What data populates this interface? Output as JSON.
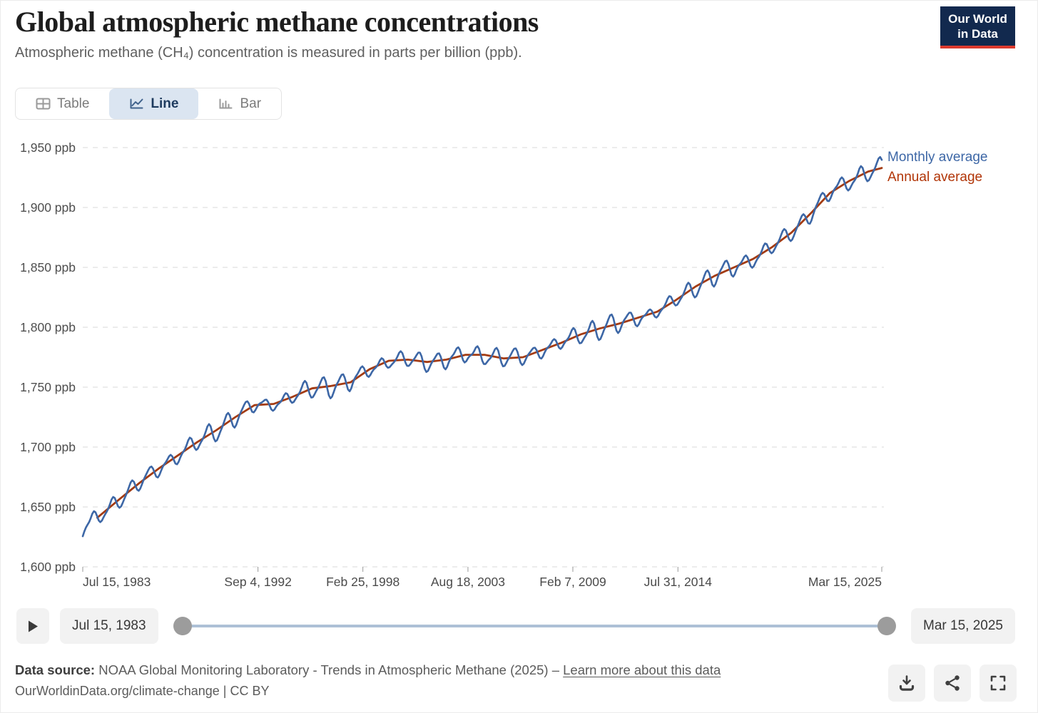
{
  "header": {
    "title": "Global atmospheric methane concentrations",
    "subtitle": "Atmospheric methane (CH₄) concentration is measured in parts per billion (ppb).",
    "logo": {
      "line1": "Our World",
      "line2": "in Data"
    }
  },
  "tabs": [
    {
      "label": "Table",
      "icon": "table-icon",
      "active": false
    },
    {
      "label": "Line",
      "icon": "line-chart-icon",
      "active": true
    },
    {
      "label": "Bar",
      "icon": "bar-chart-icon",
      "active": false
    }
  ],
  "chart_data": {
    "type": "line",
    "title": "Global atmospheric methane concentrations",
    "unit": "ppb",
    "ylim": [
      1600,
      1950
    ],
    "xlim_years": [
      1983.542,
      2025.21
    ],
    "grid": "dashed-horizontal",
    "legend_position": "right-of-line-ends",
    "y_ticks": [
      {
        "value": 1600,
        "label": "1,600 ppb"
      },
      {
        "value": 1650,
        "label": "1,650 ppb"
      },
      {
        "value": 1700,
        "label": "1,700 ppb"
      },
      {
        "value": 1750,
        "label": "1,750 ppb"
      },
      {
        "value": 1800,
        "label": "1,800 ppb"
      },
      {
        "value": 1850,
        "label": "1,850 ppb"
      },
      {
        "value": 1900,
        "label": "1,900 ppb"
      },
      {
        "value": 1950,
        "label": "1,950 ppb"
      }
    ],
    "x_ticks": [
      {
        "t": 1983.542,
        "label": "Jul 15, 1983",
        "anchor": "start"
      },
      {
        "t": 1992.68,
        "label": "Sep 4, 1992",
        "anchor": "middle"
      },
      {
        "t": 1998.15,
        "label": "Feb 25, 1998",
        "anchor": "middle"
      },
      {
        "t": 2003.63,
        "label": "Aug 18, 2003",
        "anchor": "middle"
      },
      {
        "t": 2009.1,
        "label": "Feb 7, 2009",
        "anchor": "middle"
      },
      {
        "t": 2014.58,
        "label": "Jul 31, 2014",
        "anchor": "middle"
      },
      {
        "t": 2025.21,
        "label": "Mar 15, 2025",
        "anchor": "end"
      }
    ],
    "series": [
      {
        "name": "Monthly average",
        "color": "#3d67a6",
        "style": "monthly values = annual trend + seasonal cycle (minimum in July), approx ±6 ppb",
        "derived_from": "Annual average",
        "seasonal_amplitude_ppb": 6.2,
        "second_harmonic": 0.28,
        "noise_ppb": 2.2,
        "start_point": {
          "t": 1983.542,
          "value": 1627
        },
        "end_point": {
          "t": 2025.21,
          "value": 1937
        }
      },
      {
        "name": "Annual average",
        "color": "#a33b12",
        "points": [
          [
            1984.3,
            1641
          ],
          [
            1985.5,
            1657
          ],
          [
            1986.5,
            1670
          ],
          [
            1987.5,
            1682
          ],
          [
            1988.5,
            1693
          ],
          [
            1989.5,
            1704
          ],
          [
            1990.5,
            1714
          ],
          [
            1991.5,
            1725
          ],
          [
            1992.5,
            1735
          ],
          [
            1993.5,
            1736
          ],
          [
            1994.5,
            1742
          ],
          [
            1995.5,
            1749
          ],
          [
            1996.5,
            1751
          ],
          [
            1997.5,
            1754
          ],
          [
            1998.5,
            1765
          ],
          [
            1999.5,
            1772
          ],
          [
            2000.5,
            1773
          ],
          [
            2001.5,
            1771
          ],
          [
            2002.5,
            1773
          ],
          [
            2003.5,
            1777
          ],
          [
            2004.5,
            1777
          ],
          [
            2005.5,
            1774
          ],
          [
            2006.5,
            1775
          ],
          [
            2007.5,
            1781
          ],
          [
            2008.5,
            1787
          ],
          [
            2009.5,
            1794
          ],
          [
            2010.5,
            1799
          ],
          [
            2011.5,
            1803
          ],
          [
            2012.5,
            1808
          ],
          [
            2013.5,
            1813
          ],
          [
            2014.5,
            1823
          ],
          [
            2015.5,
            1834
          ],
          [
            2016.5,
            1843
          ],
          [
            2017.5,
            1850
          ],
          [
            2018.5,
            1857
          ],
          [
            2019.5,
            1867
          ],
          [
            2020.5,
            1879
          ],
          [
            2021.5,
            1895
          ],
          [
            2022.5,
            1912
          ],
          [
            2023.5,
            1922
          ],
          [
            2024.5,
            1930
          ],
          [
            2025.21,
            1933
          ]
        ]
      }
    ],
    "legend": [
      {
        "label": "Monthly average",
        "color": "#3d67a6"
      },
      {
        "label": "Annual average",
        "color": "#b13507"
      }
    ]
  },
  "timeline": {
    "start_label": "Jul 15, 1983",
    "end_label": "Mar 15, 2025"
  },
  "footer": {
    "data_source_label": "Data source:",
    "data_source_text": " NOAA Global Monitoring Laboratory - Trends in Atmospheric Methane (2025) – ",
    "learn_more_label": "Learn more about this data",
    "url_line": "OurWorldinData.org/climate-change | CC BY"
  },
  "colors": {
    "monthly_line": "#3d67a6",
    "annual_line": "#a33b12",
    "annual_text": "#b13507",
    "gridline": "#d9d9d9",
    "axis_text": "#4e4e4e",
    "logo_bg": "#12294e",
    "logo_accent": "#dc3a2e",
    "active_tab_bg": "#dbe5f1",
    "slider_track": "#adc0d6",
    "slider_handle": "#9c9c9c"
  }
}
